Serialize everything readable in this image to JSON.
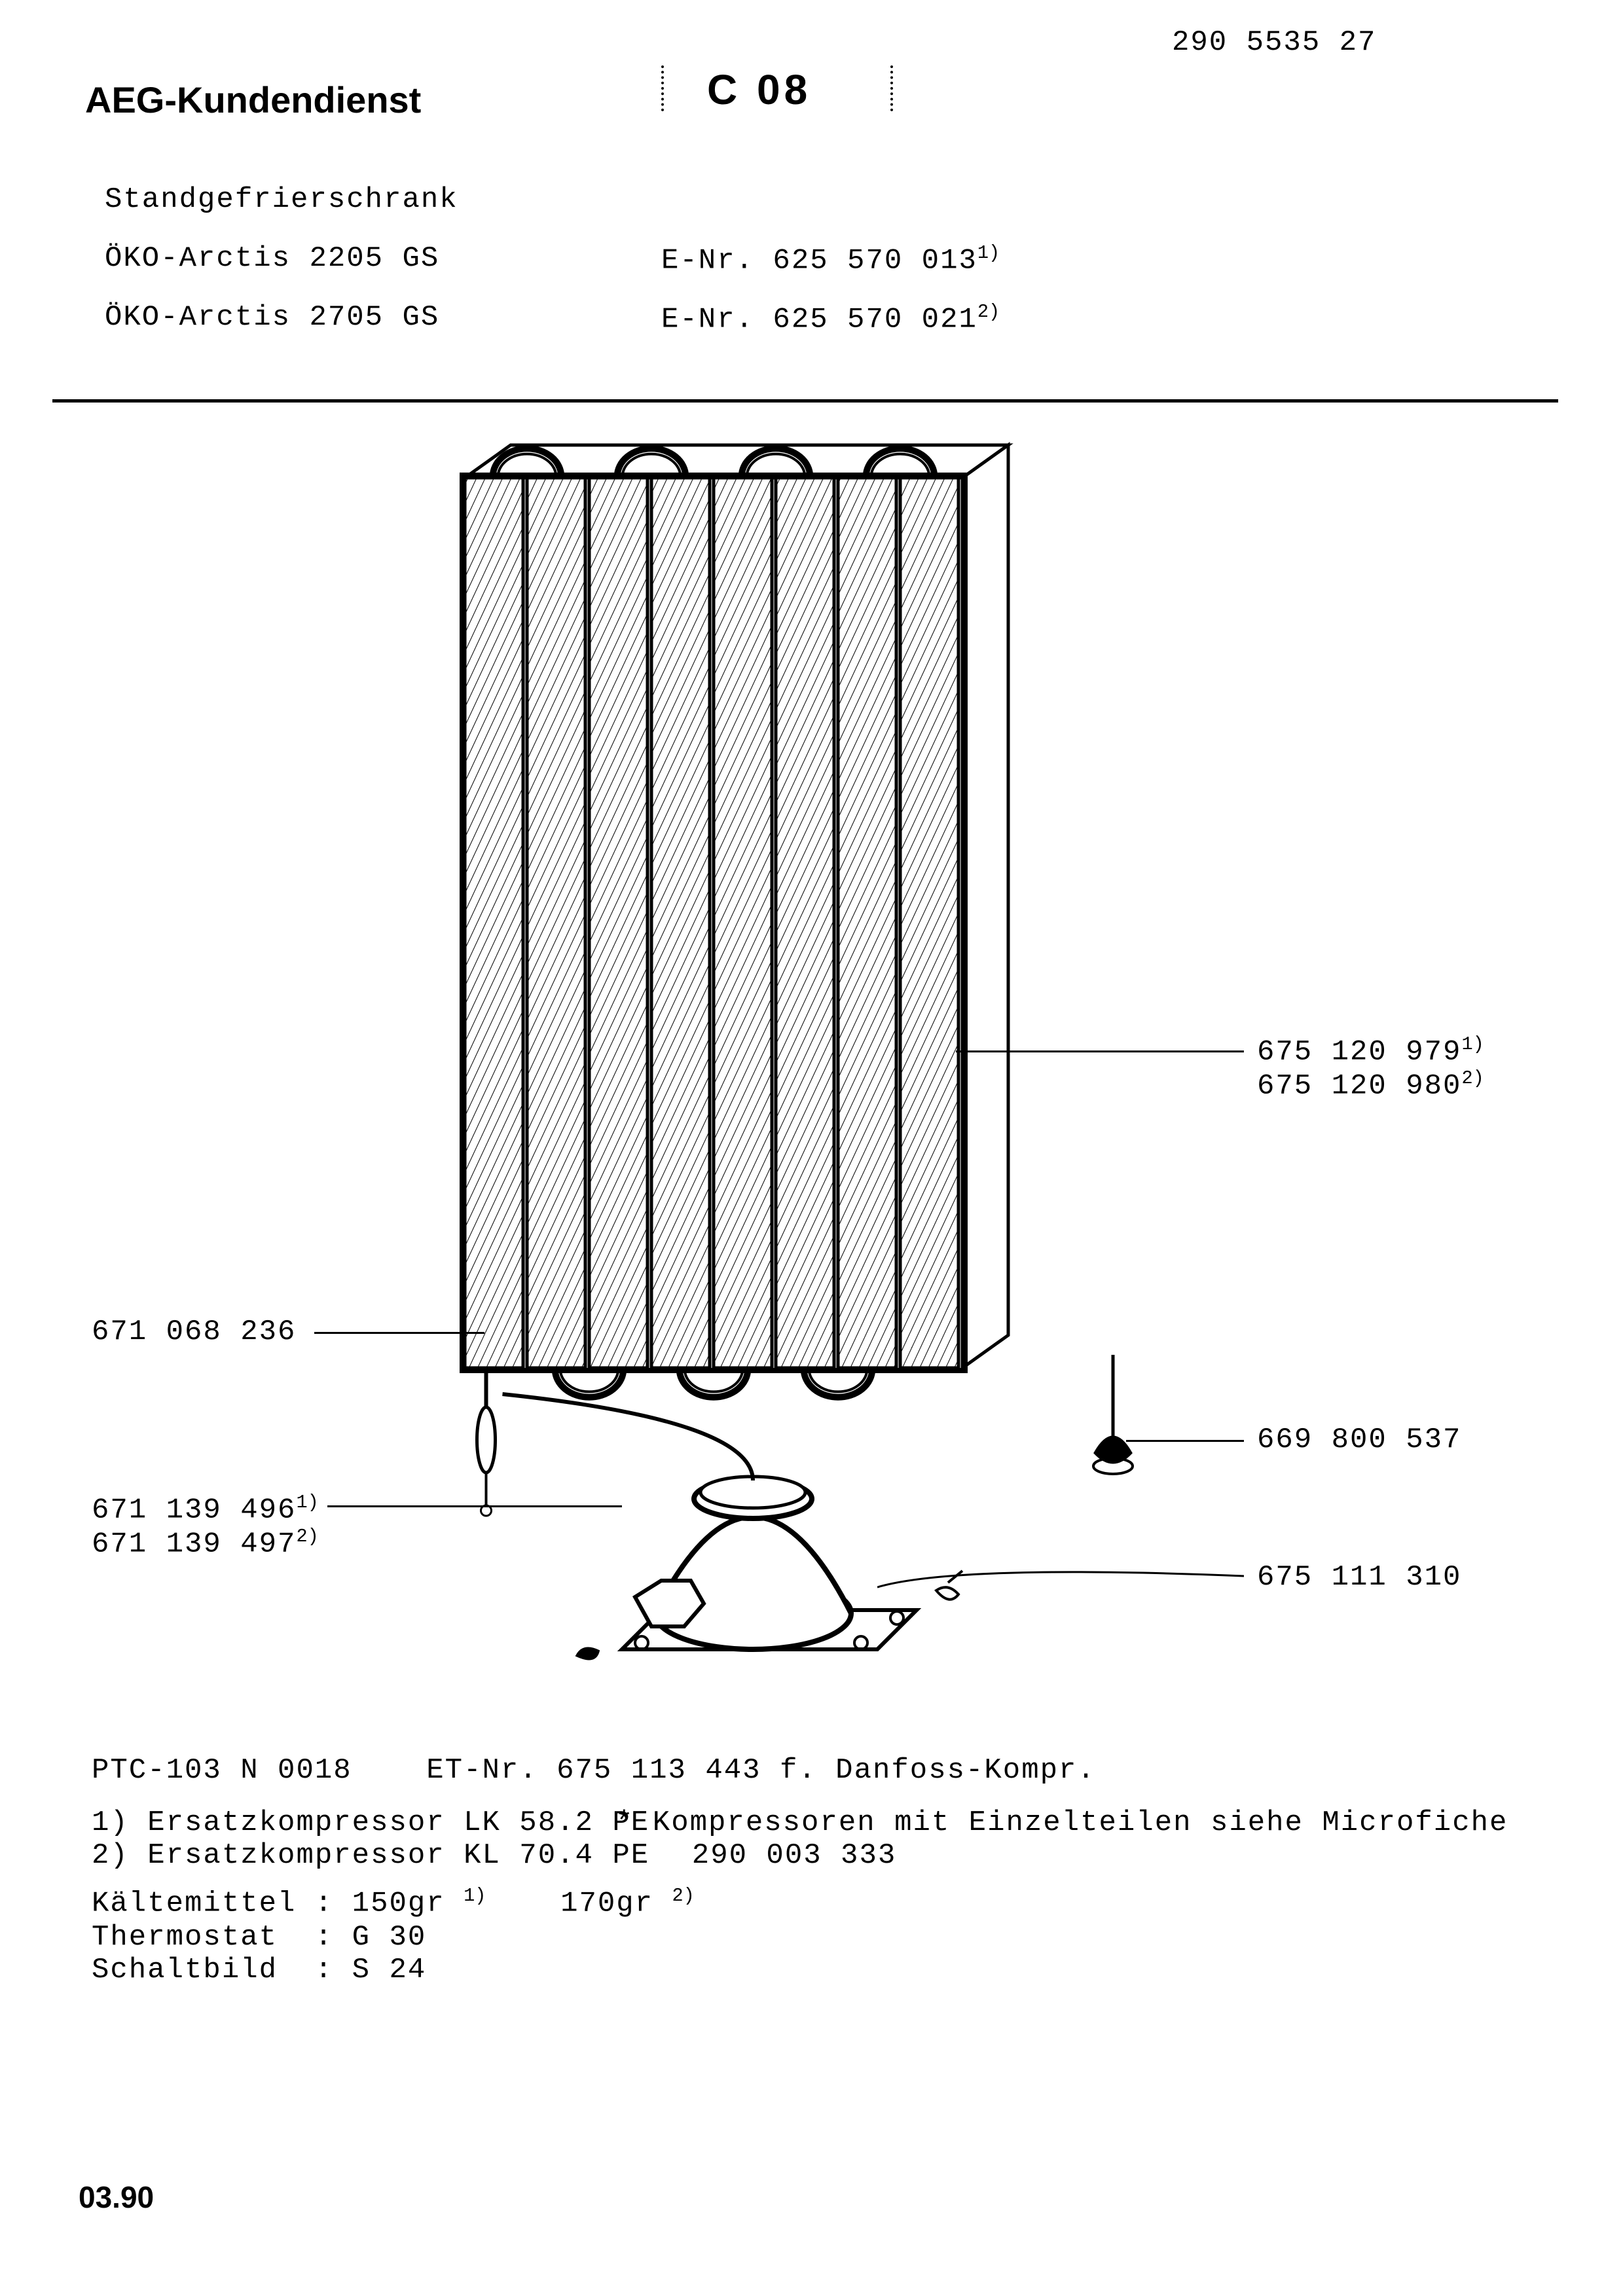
{
  "doc_number": "290 5535 27",
  "header_brand": "AEG-Kundendienst",
  "header_code": "C 08",
  "product_type": "Standgefrierschrank",
  "models": [
    {
      "name": "ÖKO-Arctis 2205 GS",
      "enr_label": "E-Nr. 625 570 013",
      "sup": "1)"
    },
    {
      "name": "ÖKO-Arctis 2705 GS",
      "enr_label": "E-Nr. 625 570 021",
      "sup": "2)"
    }
  ],
  "callouts": {
    "right_top_a": "675 120 979",
    "right_top_a_sup": "1)",
    "right_top_b": "675 120 980",
    "right_top_b_sup": "2)",
    "left_mid": "671 068 236",
    "left_low_a": "671 139 496",
    "left_low_a_sup": "1)",
    "left_low_b": "671 139 497",
    "left_low_b_sup": "2)",
    "right_mid": "669 800 537",
    "right_low": "675 111 310"
  },
  "footer": {
    "ptc": "PTC-103 N 0018    ET-Nr. 675 113 443 f. Danfoss-Kompr.",
    "line1": "1) Ersatzkompressor LK 58.2 PE",
    "line2": "2) Ersatzkompressor KL 70.4 PE",
    "star1": "* Kompressoren mit Einzelteilen siehe Microfiche",
    "star2": "  290 003 333",
    "kaeltemittel_label": "Kältemittel :",
    "kaeltemittel_v1": "150gr",
    "kaeltemittel_s1": "1)",
    "kaeltemittel_v2": "170gr",
    "kaeltemittel_s2": "2)",
    "thermostat": "Thermostat  : G 30",
    "schaltbild": "Schaltbild  : S 24"
  },
  "date": "03.90",
  "diagram": {
    "panels": 8,
    "hatch_spacing": 12,
    "stroke": "#000000",
    "fill": "#ffffff"
  }
}
